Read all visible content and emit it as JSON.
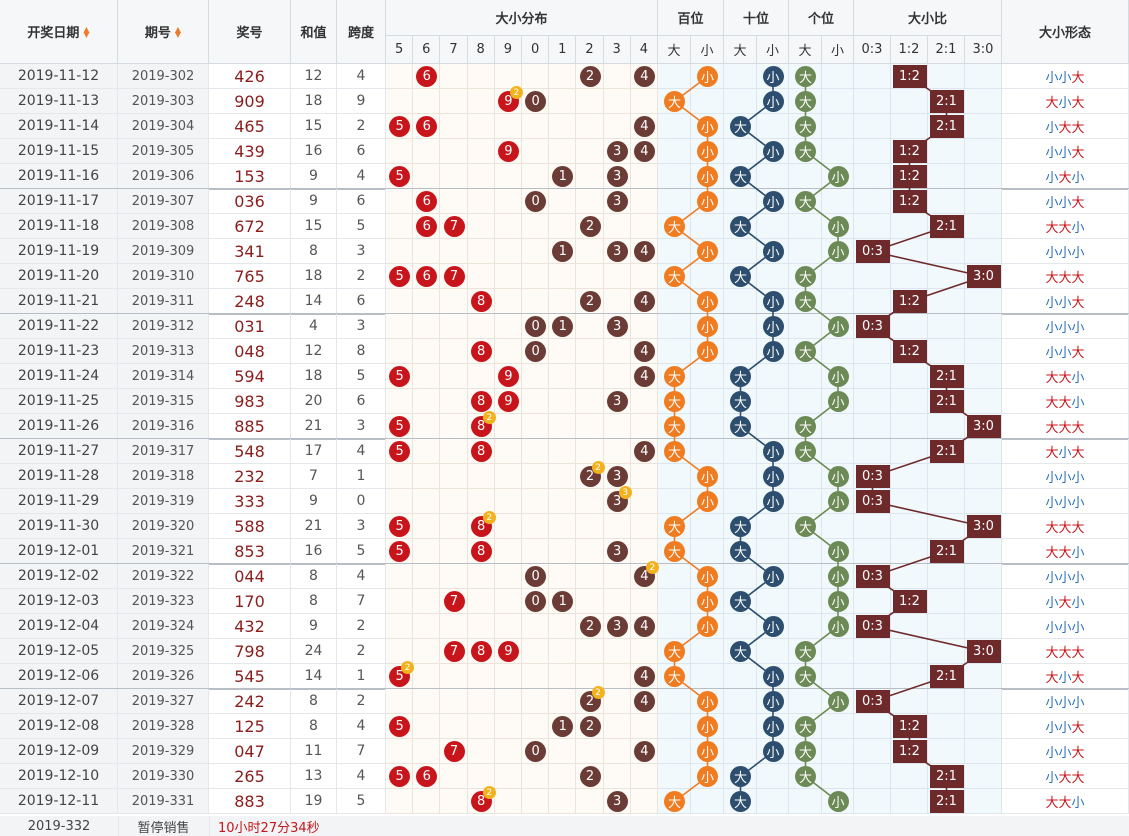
{
  "headers": {
    "date": "开奖日期",
    "issue": "期号",
    "number": "奖号",
    "sum": "和值",
    "span": "跨度",
    "dist": "大小分布",
    "dist_digits": [
      "5",
      "6",
      "7",
      "8",
      "9",
      "0",
      "1",
      "2",
      "3",
      "4"
    ],
    "hundreds": "百位",
    "tens": "十位",
    "units": "个位",
    "big": "大",
    "small": "小",
    "ratio": "大小比",
    "ratio_cols": [
      "0:3",
      "1:2",
      "2:1",
      "3:0"
    ],
    "form": "大小形态"
  },
  "rows": [
    {
      "date": "2019-11-12",
      "issue": "2019-302",
      "number": "426",
      "sum": "12",
      "span": "4",
      "form": "小小大",
      "ratio": "1:2"
    },
    {
      "date": "2019-11-13",
      "issue": "2019-303",
      "number": "909",
      "sum": "18",
      "span": "9",
      "form": "大小大",
      "ratio": "2:1"
    },
    {
      "date": "2019-11-14",
      "issue": "2019-304",
      "number": "465",
      "sum": "15",
      "span": "2",
      "form": "小大大",
      "ratio": "2:1"
    },
    {
      "date": "2019-11-15",
      "issue": "2019-305",
      "number": "439",
      "sum": "16",
      "span": "6",
      "form": "小小大",
      "ratio": "1:2"
    },
    {
      "date": "2019-11-16",
      "issue": "2019-306",
      "number": "153",
      "sum": "9",
      "span": "4",
      "form": "小大小",
      "ratio": "1:2"
    },
    {
      "date": "2019-11-17",
      "issue": "2019-307",
      "number": "036",
      "sum": "9",
      "span": "6",
      "form": "小小大",
      "ratio": "1:2"
    },
    {
      "date": "2019-11-18",
      "issue": "2019-308",
      "number": "672",
      "sum": "15",
      "span": "5",
      "form": "大大小",
      "ratio": "2:1"
    },
    {
      "date": "2019-11-19",
      "issue": "2019-309",
      "number": "341",
      "sum": "8",
      "span": "3",
      "form": "小小小",
      "ratio": "0:3"
    },
    {
      "date": "2019-11-20",
      "issue": "2019-310",
      "number": "765",
      "sum": "18",
      "span": "2",
      "form": "大大大",
      "ratio": "3:0"
    },
    {
      "date": "2019-11-21",
      "issue": "2019-311",
      "number": "248",
      "sum": "14",
      "span": "6",
      "form": "小小大",
      "ratio": "1:2"
    },
    {
      "date": "2019-11-22",
      "issue": "2019-312",
      "number": "031",
      "sum": "4",
      "span": "3",
      "form": "小小小",
      "ratio": "0:3"
    },
    {
      "date": "2019-11-23",
      "issue": "2019-313",
      "number": "048",
      "sum": "12",
      "span": "8",
      "form": "小小大",
      "ratio": "1:2"
    },
    {
      "date": "2019-11-24",
      "issue": "2019-314",
      "number": "594",
      "sum": "18",
      "span": "5",
      "form": "大大小",
      "ratio": "2:1"
    },
    {
      "date": "2019-11-25",
      "issue": "2019-315",
      "number": "983",
      "sum": "20",
      "span": "6",
      "form": "大大小",
      "ratio": "2:1"
    },
    {
      "date": "2019-11-26",
      "issue": "2019-316",
      "number": "885",
      "sum": "21",
      "span": "3",
      "form": "大大大",
      "ratio": "3:0"
    },
    {
      "date": "2019-11-27",
      "issue": "2019-317",
      "number": "548",
      "sum": "17",
      "span": "4",
      "form": "大小大",
      "ratio": "2:1"
    },
    {
      "date": "2019-11-28",
      "issue": "2019-318",
      "number": "232",
      "sum": "7",
      "span": "1",
      "form": "小小小",
      "ratio": "0:3"
    },
    {
      "date": "2019-11-29",
      "issue": "2019-319",
      "number": "333",
      "sum": "9",
      "span": "0",
      "form": "小小小",
      "ratio": "0:3"
    },
    {
      "date": "2019-11-30",
      "issue": "2019-320",
      "number": "588",
      "sum": "21",
      "span": "3",
      "form": "大大大",
      "ratio": "3:0"
    },
    {
      "date": "2019-12-01",
      "issue": "2019-321",
      "number": "853",
      "sum": "16",
      "span": "5",
      "form": "大大小",
      "ratio": "2:1"
    },
    {
      "date": "2019-12-02",
      "issue": "2019-322",
      "number": "044",
      "sum": "8",
      "span": "4",
      "form": "小小小",
      "ratio": "0:3"
    },
    {
      "date": "2019-12-03",
      "issue": "2019-323",
      "number": "170",
      "sum": "8",
      "span": "7",
      "form": "小大小",
      "ratio": "1:2"
    },
    {
      "date": "2019-12-04",
      "issue": "2019-324",
      "number": "432",
      "sum": "9",
      "span": "2",
      "form": "小小小",
      "ratio": "0:3"
    },
    {
      "date": "2019-12-05",
      "issue": "2019-325",
      "number": "798",
      "sum": "24",
      "span": "2",
      "form": "大大大",
      "ratio": "3:0"
    },
    {
      "date": "2019-12-06",
      "issue": "2019-326",
      "number": "545",
      "sum": "14",
      "span": "1",
      "form": "大小大",
      "ratio": "2:1"
    },
    {
      "date": "2019-12-07",
      "issue": "2019-327",
      "number": "242",
      "sum": "8",
      "span": "2",
      "form": "小小小",
      "ratio": "0:3"
    },
    {
      "date": "2019-12-08",
      "issue": "2019-328",
      "number": "125",
      "sum": "8",
      "span": "4",
      "form": "小小大",
      "ratio": "1:2"
    },
    {
      "date": "2019-12-09",
      "issue": "2019-329",
      "number": "047",
      "sum": "11",
      "span": "7",
      "form": "小小大",
      "ratio": "1:2"
    },
    {
      "date": "2019-12-10",
      "issue": "2019-330",
      "number": "265",
      "sum": "13",
      "span": "4",
      "form": "小大大",
      "ratio": "2:1"
    },
    {
      "date": "2019-12-11",
      "issue": "2019-331",
      "number": "883",
      "sum": "19",
      "span": "5",
      "form": "大大小",
      "ratio": "2:1"
    }
  ],
  "footer": {
    "issue": "2019-332",
    "status": "暂停销售",
    "countdown": "10小时27分34秒"
  },
  "colors": {
    "red": "#c8151b",
    "dark": "#6b3b35",
    "orange": "#f07c22",
    "navy": "#2d4e6e",
    "green": "#6c8a55",
    "ratio": "#6e2a2a",
    "badge": "#f2b21d"
  }
}
